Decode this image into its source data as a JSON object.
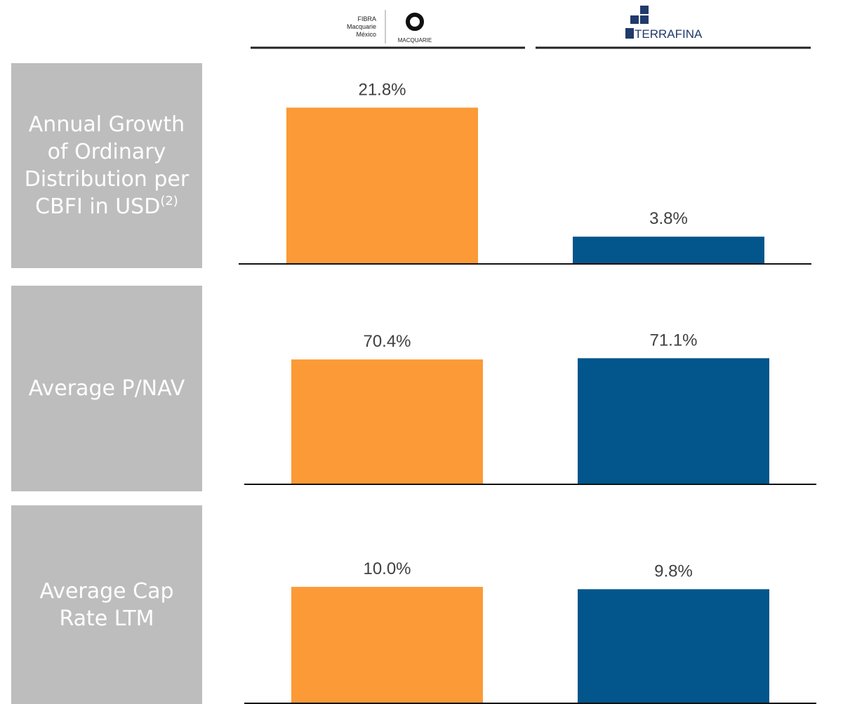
{
  "header": {
    "left_logo": {
      "lines": [
        "FIBRA",
        "Macquarie",
        "México"
      ],
      "brand": "MACQUARIE"
    },
    "right_logo": {
      "brand": "TERRAFINA"
    }
  },
  "chart_data": [
    {
      "type": "bar",
      "title": "Annual Growth of Ordinary Distribution per CBFI in USD",
      "title_note": "(2)",
      "values": [
        21.8,
        3.8
      ],
      "value_labels": [
        "21.8%",
        "3.8%"
      ],
      "colors": [
        "#fb9a36",
        "#02568b"
      ],
      "ylim": [
        0,
        28
      ]
    },
    {
      "type": "bar",
      "title": "Average P/NAV",
      "values": [
        70.4,
        71.1
      ],
      "value_labels": [
        "70.4%",
        "71.1%"
      ],
      "colors": [
        "#fb9a36",
        "#02568b"
      ],
      "ylim": [
        0,
        112
      ]
    },
    {
      "type": "bar",
      "title": "Average Cap Rate LTM",
      "values": [
        10.0,
        9.8
      ],
      "value_labels": [
        "10.0%",
        "9.8%"
      ],
      "colors": [
        "#fb9a36",
        "#02568b"
      ],
      "ylim": [
        0,
        17
      ]
    }
  ]
}
